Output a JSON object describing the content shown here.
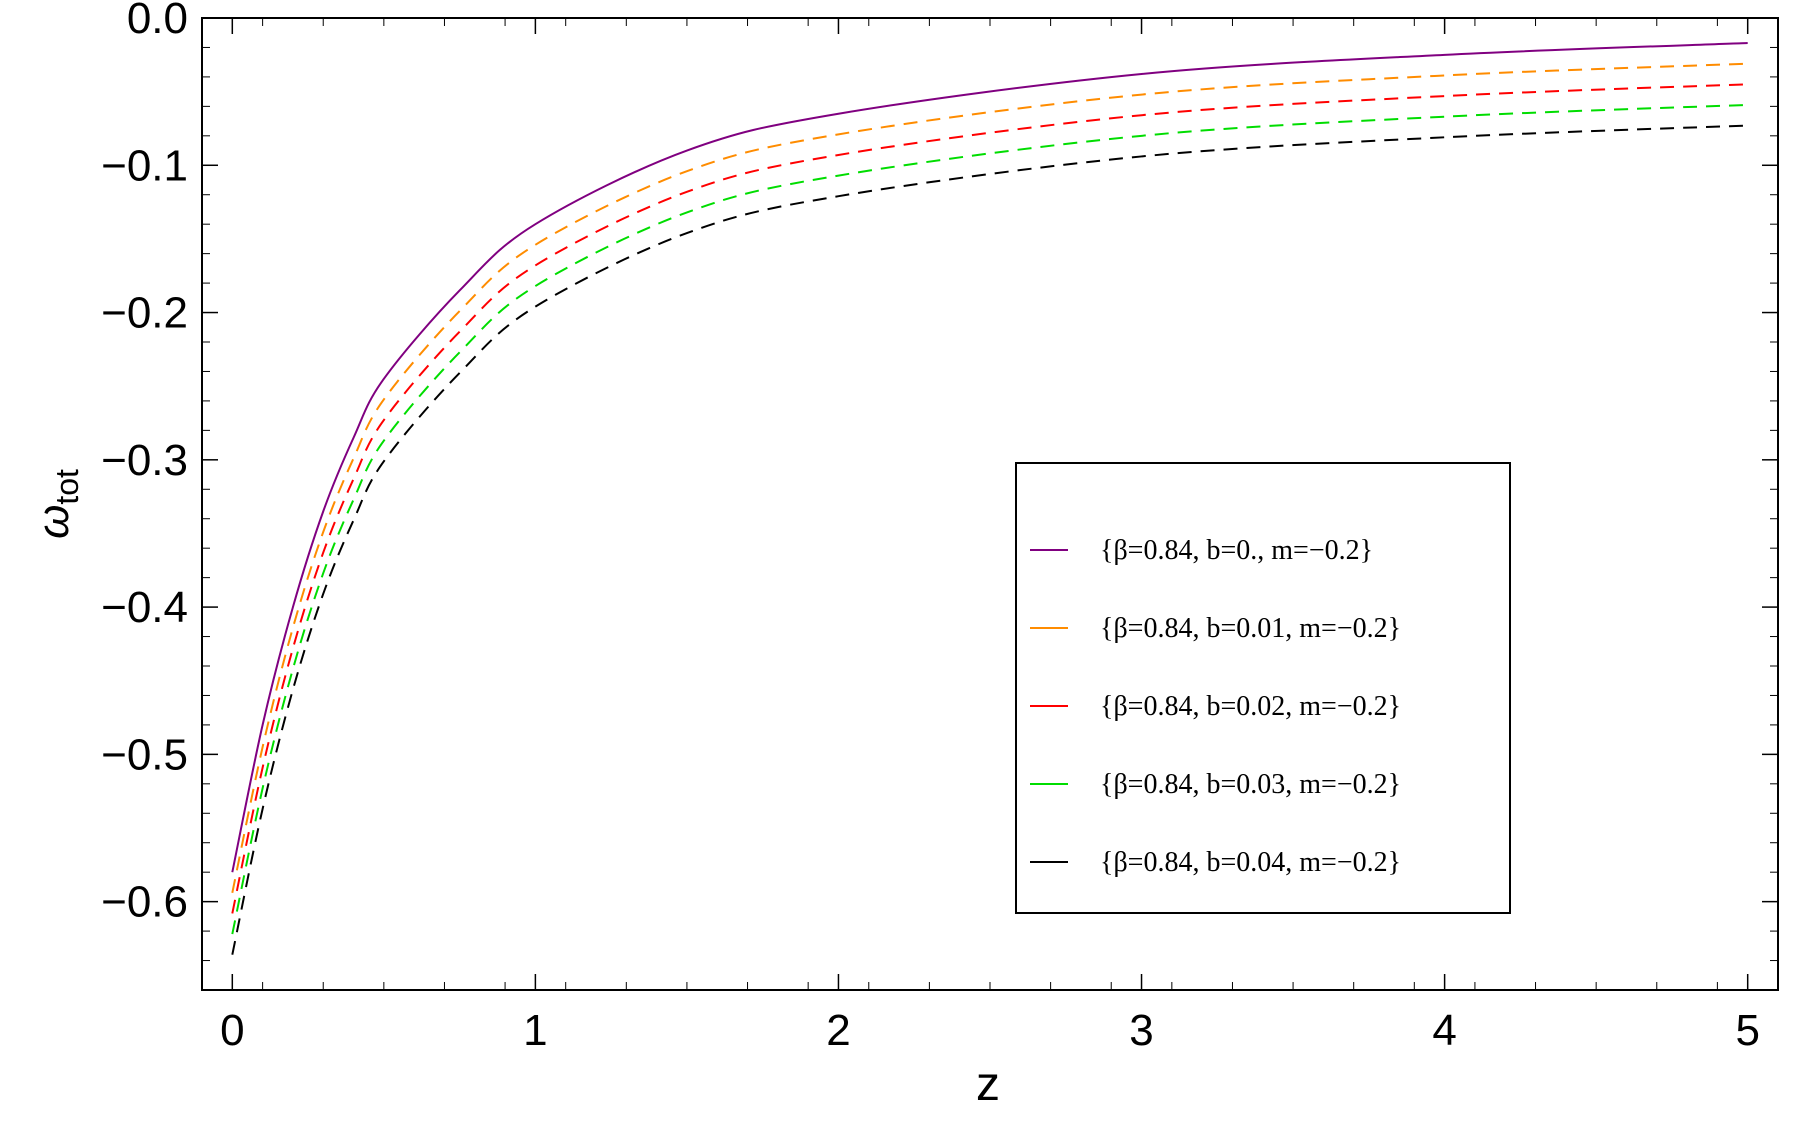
{
  "chart_data": {
    "type": "line",
    "xlabel": "z",
    "ylabel": {
      "symbol": "ω",
      "subscript": "tot"
    },
    "xlim": [
      -0.1,
      5.1
    ],
    "ylim": [
      -0.66,
      0.0
    ],
    "x_ticks": [
      0,
      1,
      2,
      3,
      4,
      5
    ],
    "x_tick_labels": [
      "0",
      "1",
      "2",
      "3",
      "4",
      "5"
    ],
    "y_ticks": [
      0.0,
      -0.1,
      -0.2,
      -0.3,
      -0.4,
      -0.5,
      -0.6
    ],
    "y_tick_labels": [
      "0.0",
      "−0.1",
      "−0.2",
      "−0.3",
      "−0.4",
      "−0.5",
      "−0.6"
    ],
    "grid": false,
    "legend_position": "center-right",
    "x": [
      0,
      0.1,
      0.2,
      0.3,
      0.4,
      0.5,
      0.75,
      1.0,
      1.5,
      2.0,
      3.0,
      4.0,
      5.0
    ],
    "series": [
      {
        "name": "{β=0.84, b=0., m=−0.2}",
        "color": "#800080",
        "dash": "solid",
        "values": [
          -0.58,
          -0.48,
          -0.4,
          -0.335,
          -0.285,
          -0.245,
          -0.185,
          -0.14,
          -0.09,
          -0.065,
          -0.038,
          -0.025,
          -0.017
        ]
      },
      {
        "name": "{β=0.84, b=0.01, m=−0.2}",
        "color": "#ff8c00",
        "dash": "dashed",
        "values": [
          -0.594,
          -0.495,
          -0.414,
          -0.349,
          -0.299,
          -0.259,
          -0.199,
          -0.154,
          -0.104,
          -0.079,
          -0.052,
          -0.039,
          -0.031
        ]
      },
      {
        "name": "{β=0.84, b=0.02, m=−0.2}",
        "color": "#ff0000",
        "dash": "dashed",
        "values": [
          -0.608,
          -0.509,
          -0.428,
          -0.363,
          -0.313,
          -0.273,
          -0.213,
          -0.168,
          -0.118,
          -0.093,
          -0.066,
          -0.053,
          -0.045
        ]
      },
      {
        "name": "{β=0.84, b=0.03, m=−0.2}",
        "color": "#00dd00",
        "dash": "dashed",
        "values": [
          -0.622,
          -0.523,
          -0.442,
          -0.377,
          -0.327,
          -0.287,
          -0.227,
          -0.182,
          -0.132,
          -0.107,
          -0.08,
          -0.067,
          -0.059
        ]
      },
      {
        "name": "{β=0.84, b=0.04, m=−0.2}",
        "color": "#000000",
        "dash": "dashed",
        "values": [
          -0.636,
          -0.537,
          -0.456,
          -0.391,
          -0.341,
          -0.301,
          -0.241,
          -0.196,
          -0.146,
          -0.121,
          -0.094,
          -0.081,
          -0.073
        ]
      }
    ]
  }
}
